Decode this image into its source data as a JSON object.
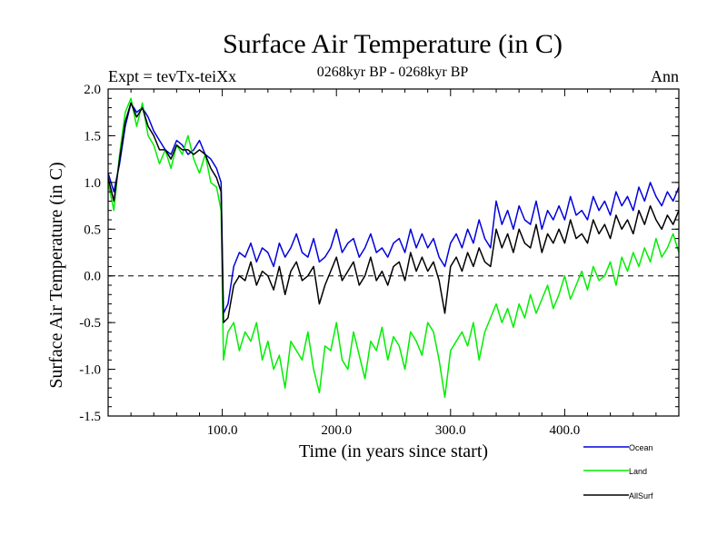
{
  "chart_data": {
    "type": "line",
    "title": "Surface Air Temperature (in C)",
    "subtitle": "0268kyr BP - 0268kyr BP",
    "left_header": "Expt = tevTx-teiXx",
    "right_header": "Ann",
    "xlabel": "Time (in years since start)",
    "ylabel": "Surface Air Temperature (in C)",
    "xlim": [
      0,
      500
    ],
    "ylim": [
      -1.5,
      2.0
    ],
    "x_ticks": [
      100,
      200,
      300,
      400
    ],
    "x_tick_labels": [
      "100.0",
      "200.0",
      "300.0",
      "400.0"
    ],
    "y_ticks": [
      -1.5,
      -1.0,
      -0.5,
      0.0,
      0.5,
      1.0,
      1.5,
      2.0
    ],
    "y_tick_labels": [
      "-1.5",
      "-1.0",
      "-0.5",
      "0.0",
      "0.5",
      "1.0",
      "1.5",
      "2.0"
    ],
    "reference_line": 0.0,
    "legend_placement": "below-right",
    "x": [
      0,
      5,
      10,
      15,
      20,
      25,
      30,
      35,
      40,
      45,
      50,
      55,
      60,
      65,
      70,
      75,
      80,
      85,
      90,
      95,
      99,
      101,
      105,
      110,
      115,
      120,
      125,
      130,
      135,
      140,
      145,
      150,
      155,
      160,
      165,
      170,
      175,
      180,
      185,
      190,
      195,
      200,
      205,
      210,
      215,
      220,
      225,
      230,
      235,
      240,
      245,
      250,
      255,
      260,
      265,
      270,
      275,
      280,
      285,
      290,
      295,
      300,
      305,
      310,
      315,
      320,
      325,
      330,
      335,
      340,
      345,
      350,
      355,
      360,
      365,
      370,
      375,
      380,
      385,
      390,
      395,
      400,
      405,
      410,
      415,
      420,
      425,
      430,
      435,
      440,
      445,
      450,
      455,
      460,
      465,
      470,
      475,
      480,
      485,
      490,
      495,
      500
    ],
    "series": [
      {
        "name": "Ocean",
        "color": "#0000dd",
        "values": [
          1.1,
          0.9,
          1.2,
          1.6,
          1.85,
          1.75,
          1.8,
          1.7,
          1.55,
          1.45,
          1.35,
          1.3,
          1.45,
          1.4,
          1.3,
          1.35,
          1.45,
          1.3,
          1.25,
          1.15,
          1.0,
          -0.4,
          -0.3,
          0.1,
          0.25,
          0.2,
          0.35,
          0.15,
          0.3,
          0.25,
          0.1,
          0.35,
          0.2,
          0.3,
          0.45,
          0.25,
          0.2,
          0.4,
          0.15,
          0.2,
          0.3,
          0.5,
          0.25,
          0.35,
          0.4,
          0.2,
          0.3,
          0.45,
          0.25,
          0.3,
          0.2,
          0.35,
          0.4,
          0.25,
          0.5,
          0.3,
          0.45,
          0.3,
          0.4,
          0.2,
          0.1,
          0.35,
          0.45,
          0.3,
          0.5,
          0.35,
          0.6,
          0.4,
          0.3,
          0.8,
          0.55,
          0.7,
          0.5,
          0.75,
          0.6,
          0.55,
          0.8,
          0.5,
          0.7,
          0.6,
          0.75,
          0.6,
          0.85,
          0.65,
          0.7,
          0.6,
          0.85,
          0.7,
          0.8,
          0.65,
          0.9,
          0.75,
          0.85,
          0.7,
          0.95,
          0.8,
          1.0,
          0.85,
          0.75,
          0.9,
          0.8,
          0.95
        ]
      },
      {
        "name": "Land",
        "color": "#00ee00",
        "values": [
          1.0,
          0.7,
          1.3,
          1.75,
          1.9,
          1.6,
          1.85,
          1.5,
          1.4,
          1.2,
          1.35,
          1.15,
          1.4,
          1.3,
          1.5,
          1.25,
          1.1,
          1.3,
          1.0,
          0.95,
          0.7,
          -0.9,
          -0.6,
          -0.5,
          -0.8,
          -0.6,
          -0.7,
          -0.5,
          -0.9,
          -0.7,
          -1.0,
          -0.85,
          -1.2,
          -0.7,
          -0.8,
          -0.9,
          -0.6,
          -1.0,
          -1.25,
          -0.75,
          -0.8,
          -0.5,
          -0.9,
          -1.0,
          -0.6,
          -0.85,
          -1.1,
          -0.7,
          -0.8,
          -0.55,
          -0.9,
          -0.65,
          -0.75,
          -1.0,
          -0.6,
          -0.7,
          -0.85,
          -0.5,
          -0.6,
          -0.9,
          -1.3,
          -0.8,
          -0.7,
          -0.6,
          -0.75,
          -0.5,
          -0.9,
          -0.6,
          -0.45,
          -0.3,
          -0.5,
          -0.35,
          -0.55,
          -0.3,
          -0.45,
          -0.2,
          -0.4,
          -0.25,
          -0.1,
          -0.35,
          -0.2,
          0.0,
          -0.25,
          -0.1,
          0.05,
          -0.15,
          0.1,
          -0.05,
          0.0,
          0.15,
          -0.1,
          0.2,
          0.05,
          0.25,
          0.1,
          0.3,
          0.15,
          0.4,
          0.2,
          0.3,
          0.45,
          0.25
        ]
      },
      {
        "name": "AllSurf",
        "color": "#000000",
        "values": [
          1.05,
          0.8,
          1.25,
          1.65,
          1.85,
          1.7,
          1.8,
          1.6,
          1.5,
          1.35,
          1.35,
          1.25,
          1.4,
          1.35,
          1.35,
          1.3,
          1.35,
          1.3,
          1.15,
          1.05,
          0.9,
          -0.5,
          -0.45,
          -0.1,
          0.0,
          -0.05,
          0.15,
          -0.1,
          0.05,
          0.0,
          -0.15,
          0.1,
          -0.2,
          0.05,
          0.15,
          -0.05,
          0.0,
          0.1,
          -0.3,
          -0.1,
          0.05,
          0.2,
          -0.05,
          0.05,
          0.15,
          -0.1,
          0.0,
          0.2,
          -0.05,
          0.05,
          -0.1,
          0.1,
          0.15,
          -0.05,
          0.25,
          0.05,
          0.2,
          0.05,
          0.15,
          -0.05,
          -0.4,
          0.1,
          0.2,
          0.05,
          0.25,
          0.1,
          0.3,
          0.15,
          0.1,
          0.5,
          0.3,
          0.45,
          0.25,
          0.5,
          0.35,
          0.3,
          0.55,
          0.25,
          0.45,
          0.35,
          0.5,
          0.35,
          0.6,
          0.4,
          0.45,
          0.35,
          0.6,
          0.45,
          0.55,
          0.4,
          0.65,
          0.5,
          0.6,
          0.45,
          0.7,
          0.55,
          0.75,
          0.6,
          0.5,
          0.65,
          0.55,
          0.7
        ]
      }
    ]
  }
}
